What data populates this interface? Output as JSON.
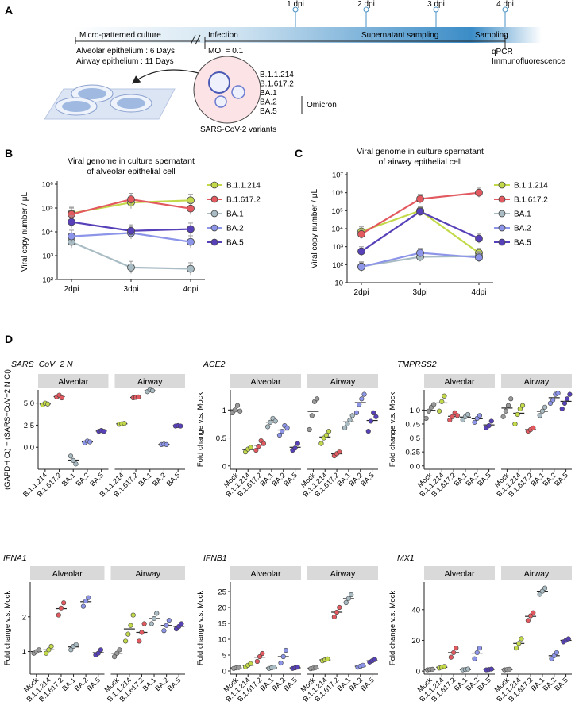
{
  "panels": {
    "A": "A",
    "B": "B",
    "C": "C",
    "D": "D"
  },
  "timeline": {
    "dpi": [
      "1 dpi",
      "2 dpi",
      "3 dpi",
      "4 dpi"
    ],
    "stages": [
      "Micro-patterned culture",
      "Infection",
      "Supernatant sampling",
      "Sampling"
    ],
    "culture_notes": [
      "Alveolar epithelium : 6 Days",
      "Airway epithelium : 11 Days"
    ],
    "moi": "MOI = 0.1",
    "assays": [
      "qPCR",
      "Immunofluorescence"
    ],
    "variants": [
      "B.1.1.214",
      "B.1.617.2",
      "BA.1",
      "BA.2",
      "BA.5"
    ],
    "omicron": "Omicron",
    "variants_caption": "SARS-CoV-2 variants"
  },
  "colors": {
    "B.1.1.214": "#c3d94a",
    "B.1.617.2": "#e2595f",
    "BA.1": "#a9bcc4",
    "BA.2": "#8d95e8",
    "BA.5": "#5740b8",
    "Mock": "#999999"
  },
  "legend": [
    "B.1.1.214",
    "B.1.617.2",
    "BA.1",
    "BA.2",
    "BA.5"
  ],
  "chart_data": [
    {
      "type": "line",
      "panel": "B",
      "title": [
        "Viral genome in culture spernatant",
        "of alveolar epithelial cell"
      ],
      "ylabel": "Viral copy number / μL",
      "scale": "log",
      "ylim": [
        100,
        1000000
      ],
      "ytick_labels": [
        "10²",
        "10³",
        "10⁴",
        "10⁵",
        "10⁶"
      ],
      "categories": [
        "2dpi",
        "3dpi",
        "4dpi"
      ],
      "series": [
        {
          "name": "B.1.1.214",
          "values": [
            60000,
            170000,
            210000
          ]
        },
        {
          "name": "B.1.617.2",
          "values": [
            55000,
            230000,
            95000
          ]
        },
        {
          "name": "BA.1",
          "values": [
            3800,
            320,
            280
          ]
        },
        {
          "name": "BA.2",
          "values": [
            6500,
            9000,
            3800
          ]
        },
        {
          "name": "BA.5",
          "values": [
            26000,
            11000,
            13000
          ]
        }
      ]
    },
    {
      "type": "line",
      "panel": "C",
      "title": [
        "Viral genome in culture spernatant",
        "of airway epithelial cell"
      ],
      "ylabel": "Viral copy number / μL",
      "scale": "log",
      "ylim": [
        10,
        10000000
      ],
      "ytick_labels": [
        "10",
        "10²",
        "10³",
        "10⁴",
        "10⁵",
        "10⁶",
        "10⁷"
      ],
      "categories": [
        "2dpi",
        "3dpi",
        "4dpi"
      ],
      "series": [
        {
          "name": "B.1.1.214",
          "values": [
            7000,
            100000,
            450
          ]
        },
        {
          "name": "B.1.617.2",
          "values": [
            5000,
            450000,
            1000000
          ]
        },
        {
          "name": "BA.1",
          "values": [
            80,
            270,
            300
          ]
        },
        {
          "name": "BA.2",
          "values": [
            75,
            450,
            250
          ]
        },
        {
          "name": "BA.5",
          "values": [
            550,
            90000,
            2800
          ]
        }
      ]
    },
    {
      "type": "scatter",
      "panel": "D",
      "title": "SARS−CoV−2 N",
      "ylabel": "(GAPDH Ct) − (SARS−CoV−2 N Ct)",
      "ylim": [
        -2.5,
        6.5
      ],
      "yticks": [
        0,
        2.5,
        5
      ],
      "ytick_labels": [
        "0.0",
        "2.5",
        "5.0"
      ],
      "facets": [
        {
          "name": "Alveolar",
          "groups": [
            {
              "label": "B.1.1.214",
              "points": [
                4.8,
                5.0,
                4.9
              ]
            },
            {
              "label": "B.1.617.2",
              "points": [
                5.7,
                5.9,
                5.6
              ]
            },
            {
              "label": "BA.1",
              "points": [
                -1.0,
                -1.5,
                -1.9
              ]
            },
            {
              "label": "BA.2",
              "points": [
                0.5,
                0.7,
                0.6
              ]
            },
            {
              "label": "BA.5",
              "points": [
                1.8,
                1.9,
                1.8
              ]
            }
          ]
        },
        {
          "name": "Airway",
          "groups": [
            {
              "label": "B.1.1.214",
              "points": [
                2.6,
                2.65,
                2.7
              ]
            },
            {
              "label": "B.1.617.2",
              "points": [
                5.6,
                5.65,
                5.7
              ]
            },
            {
              "label": "BA.1",
              "points": [
                6.3,
                6.5,
                6.4
              ]
            },
            {
              "label": "BA.2",
              "points": [
                0.3,
                0.35,
                0.3
              ]
            },
            {
              "label": "BA.5",
              "points": [
                2.4,
                2.45,
                2.4
              ]
            }
          ]
        }
      ]
    },
    {
      "type": "scatter",
      "panel": "D",
      "title": "ACE2",
      "ylabel": "Fold change v.s. Mock",
      "ylim": [
        -0.06,
        1.36
      ],
      "yticks": [
        0,
        0.5,
        1
      ],
      "ytick_labels": [
        "0",
        "0.5",
        "1"
      ],
      "facets": [
        {
          "name": "Alveolar",
          "groups": [
            {
              "label": "Mock",
              "points": [
                0.95,
                1.0,
                1.08,
                0.98
              ]
            },
            {
              "label": "B.1.1.214",
              "points": [
                0.25,
                0.3,
                0.33
              ]
            },
            {
              "label": "B.1.617.2",
              "points": [
                0.28,
                0.35,
                0.45,
                0.4
              ]
            },
            {
              "label": "BA.1",
              "points": [
                0.7,
                0.78,
                0.85,
                0.8
              ]
            },
            {
              "label": "BA.2",
              "points": [
                0.55,
                0.62,
                0.72,
                0.68
              ]
            },
            {
              "label": "BA.5",
              "points": [
                0.28,
                0.32,
                0.4
              ]
            }
          ]
        },
        {
          "name": "Airway",
          "groups": [
            {
              "label": "Mock",
              "points": [
                0.65,
                0.9,
                1.15,
                1.2
              ]
            },
            {
              "label": "B.1.1.214",
              "points": [
                0.4,
                0.5,
                0.55,
                0.62
              ]
            },
            {
              "label": "B.1.617.2",
              "points": [
                0.18,
                0.22,
                0.25
              ]
            },
            {
              "label": "BA.1",
              "points": [
                0.68,
                0.75,
                0.82,
                0.9
              ]
            },
            {
              "label": "BA.2",
              "points": [
                0.95,
                1.1,
                1.2,
                1.28
              ]
            },
            {
              "label": "BA.5",
              "points": [
                0.62,
                0.8,
                0.95,
                0.88
              ]
            }
          ]
        }
      ]
    },
    {
      "type": "scatter",
      "panel": "D",
      "title": "TMPRSS2",
      "ylabel": "Fold change v.s. Mock",
      "ylim": [
        -0.06,
        1.36
      ],
      "yticks": [
        0,
        0.25,
        0.5,
        0.75,
        1
      ],
      "ytick_labels": [
        "0.0",
        "0.25",
        "0.5",
        "0.75",
        "1.0"
      ],
      "facets": [
        {
          "name": "Alveolar",
          "groups": [
            {
              "label": "Mock",
              "points": [
                0.85,
                0.98,
                1.05,
                1.1
              ]
            },
            {
              "label": "B.1.1.214",
              "points": [
                0.98,
                1.15,
                1.25
              ]
            },
            {
              "label": "B.1.617.2",
              "points": [
                0.82,
                0.88,
                0.95,
                0.9
              ]
            },
            {
              "label": "BA.1",
              "points": [
                0.82,
                0.88,
                0.92
              ]
            },
            {
              "label": "BA.2",
              "points": [
                0.78,
                0.85,
                0.9
              ]
            },
            {
              "label": "BA.5",
              "points": [
                0.68,
                0.72,
                0.8
              ]
            }
          ]
        },
        {
          "name": "Airway",
          "groups": [
            {
              "label": "Mock",
              "points": [
                0.88,
                0.98,
                1.08,
                1.2
              ]
            },
            {
              "label": "B.1.1.214",
              "points": [
                0.75,
                0.92,
                1.02,
                1.08
              ]
            },
            {
              "label": "B.1.617.2",
              "points": [
                0.62,
                0.65,
                0.68
              ]
            },
            {
              "label": "BA.1",
              "points": [
                0.9,
                0.98,
                1.05
              ]
            },
            {
              "label": "BA.2",
              "points": [
                1.12,
                1.18,
                1.28,
                1.3
              ]
            },
            {
              "label": "BA.5",
              "points": [
                1.02,
                1.12,
                1.2,
                1.28
              ]
            }
          ]
        }
      ]
    },
    {
      "type": "scatter",
      "panel": "D",
      "title": "IFNA1",
      "ylabel": "Fold change v.s. Mock",
      "ylim": [
        0.35,
        3.0
      ],
      "yticks": [
        1,
        2
      ],
      "ytick_labels": [
        "1",
        "2"
      ],
      "facets": [
        {
          "name": "Alveolar",
          "groups": [
            {
              "label": "Mock",
              "points": [
                0.95,
                1.0,
                1.05
              ]
            },
            {
              "label": "B.1.1.214",
              "points": [
                0.95,
                1.05,
                1.15
              ]
            },
            {
              "label": "B.1.617.2",
              "points": [
                2.05,
                2.25,
                2.4
              ]
            },
            {
              "label": "BA.1",
              "points": [
                1.05,
                1.15,
                1.2
              ]
            },
            {
              "label": "BA.2",
              "points": [
                2.3,
                2.45,
                2.55
              ]
            },
            {
              "label": "BA.5",
              "points": [
                0.9,
                0.95,
                1.05
              ]
            }
          ]
        },
        {
          "name": "Airway",
          "groups": [
            {
              "label": "Mock",
              "points": [
                0.85,
                0.95,
                1.05
              ]
            },
            {
              "label": "B.1.1.214",
              "points": [
                1.3,
                1.5,
                1.75,
                2.05
              ]
            },
            {
              "label": "B.1.617.2",
              "points": [
                1.3,
                1.55,
                1.8
              ]
            },
            {
              "label": "BA.1",
              "points": [
                1.8,
                1.95,
                2.1
              ]
            },
            {
              "label": "BA.2",
              "points": [
                1.6,
                1.75,
                1.9
              ]
            },
            {
              "label": "BA.5",
              "points": [
                1.65,
                1.72,
                1.8
              ]
            }
          ]
        }
      ]
    },
    {
      "type": "scatter",
      "panel": "D",
      "title": "IFNB1",
      "ylabel": "Fold change v.s. Mock",
      "ylim": [
        -1,
        28
      ],
      "yticks": [
        0,
        5,
        10,
        15,
        20,
        25
      ],
      "ytick_labels": [
        "0",
        "5",
        "10",
        "15",
        "20",
        "25"
      ],
      "facets": [
        {
          "name": "Alveolar",
          "groups": [
            {
              "label": "Mock",
              "points": [
                0.8,
                1.0,
                1.1
              ]
            },
            {
              "label": "B.1.1.214",
              "points": [
                1.3,
                1.8,
                2.3
              ]
            },
            {
              "label": "B.1.617.2",
              "points": [
                3.0,
                4.5,
                5.5
              ]
            },
            {
              "label": "BA.1",
              "points": [
                0.8,
                1.0,
                1.2
              ]
            },
            {
              "label": "BA.2",
              "points": [
                2.5,
                4.5,
                6.5
              ]
            },
            {
              "label": "BA.5",
              "points": [
                0.8,
                1.0,
                1.2
              ]
            }
          ]
        },
        {
          "name": "Airway",
          "groups": [
            {
              "label": "Mock",
              "points": [
                0.7,
                0.9,
                1.1
              ]
            },
            {
              "label": "B.1.1.214",
              "points": [
                3.2,
                3.5,
                3.8
              ]
            },
            {
              "label": "B.1.617.2",
              "points": [
                17,
                18.5,
                20
              ]
            },
            {
              "label": "BA.1",
              "points": [
                21.5,
                22.8,
                24
              ]
            },
            {
              "label": "BA.2",
              "points": [
                1.2,
                1.5,
                1.8
              ]
            },
            {
              "label": "BA.5",
              "points": [
                2.8,
                3.2,
                3.6
              ]
            }
          ]
        }
      ]
    },
    {
      "type": "scatter",
      "panel": "D",
      "title": "MX1",
      "ylabel": "Fold change v.s. Mock",
      "ylim": [
        -2,
        58
      ],
      "yticks": [
        0,
        20,
        40
      ],
      "ytick_labels": [
        "0",
        "20",
        "40"
      ],
      "facets": [
        {
          "name": "Alveolar",
          "groups": [
            {
              "label": "Mock",
              "points": [
                0.8,
                1.0,
                1.2
              ]
            },
            {
              "label": "B.1.1.214",
              "points": [
                2.0,
                2.5,
                3.0
              ]
            },
            {
              "label": "B.1.617.2",
              "points": [
                9,
                12,
                15
              ]
            },
            {
              "label": "BA.1",
              "points": [
                0.8,
                1.0,
                1.3
              ]
            },
            {
              "label": "BA.2",
              "points": [
                8,
                12,
                15
              ]
            },
            {
              "label": "BA.5",
              "points": [
                0.8,
                1.0,
                1.3
              ]
            }
          ]
        },
        {
          "name": "Airway",
          "groups": [
            {
              "label": "Mock",
              "points": [
                0.8,
                1.0,
                1.2
              ]
            },
            {
              "label": "B.1.1.214",
              "points": [
                15,
                18,
                21
              ]
            },
            {
              "label": "B.1.617.2",
              "points": [
                33,
                36,
                38
              ]
            },
            {
              "label": "BA.1",
              "points": [
                50,
                52,
                54
              ]
            },
            {
              "label": "BA.2",
              "points": [
                8,
                10,
                12
              ]
            },
            {
              "label": "BA.5",
              "points": [
                19,
                20,
                21
              ]
            }
          ]
        }
      ]
    }
  ]
}
